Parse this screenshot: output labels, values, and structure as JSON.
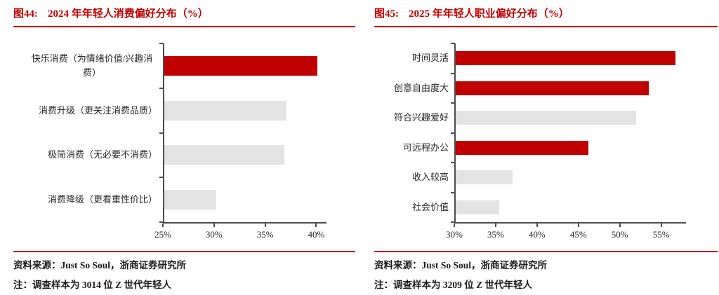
{
  "colors": {
    "accent": "#c00000",
    "bar_highlight": "#c00000",
    "bar_default": "#e3e3e3",
    "axis": "#4d4d4d"
  },
  "panels": [
    {
      "fig_label": "图44:",
      "title": "2024 年年轻人消费偏好分布（%）",
      "source": "资料来源：Just So Soul，浙商证券研究所",
      "note": "注：调查样本为 3014 位 Z 世代年轻人"
    },
    {
      "fig_label": "图45:",
      "title": "2025 年年轻人职业偏好分布（%）",
      "source": "资料来源：Just So Soul，浙商证券研究所",
      "note": "注：调查样本为 3209 位 Z 世代年轻人"
    }
  ],
  "chart_data": [
    {
      "type": "bar",
      "orientation": "horizontal",
      "title": "2024 年年轻人消费偏好分布（%）",
      "categories": [
        "快乐消费（为情绪价值/兴趣消费）",
        "消费升级（更关注消费品质）",
        "极简消费（无必要不消费）",
        "消费降级（更看重性价比）"
      ],
      "values": [
        40.1,
        37.1,
        36.9,
        30.2
      ],
      "bar_colors": [
        "#c00000",
        "#e3e3e3",
        "#e3e3e3",
        "#e3e3e3"
      ],
      "xlim": [
        25,
        41
      ],
      "xticks": [
        25,
        30,
        35,
        40
      ],
      "xtick_labels": [
        "25%",
        "30%",
        "35%",
        "40%"
      ],
      "grid": false,
      "legend": "none",
      "ylabel": "",
      "xlabel": ""
    },
    {
      "type": "bar",
      "orientation": "horizontal",
      "title": "2025 年年轻人职业偏好分布（%）",
      "categories": [
        "时间灵活",
        "创意自由度大",
        "符合兴趣爱好",
        "可远程办公",
        "收入较高",
        "社会价值"
      ],
      "values": [
        56.7,
        53.5,
        52.0,
        46.2,
        37.0,
        35.4
      ],
      "bar_colors": [
        "#c00000",
        "#c00000",
        "#e3e3e3",
        "#c00000",
        "#e3e3e3",
        "#e3e3e3"
      ],
      "xlim": [
        30,
        58
      ],
      "xticks": [
        30,
        35,
        40,
        45,
        50,
        55
      ],
      "xtick_labels": [
        "30%",
        "35%",
        "40%",
        "45%",
        "50%",
        "55%"
      ],
      "grid": false,
      "legend": "none",
      "ylabel": "",
      "xlabel": ""
    }
  ]
}
